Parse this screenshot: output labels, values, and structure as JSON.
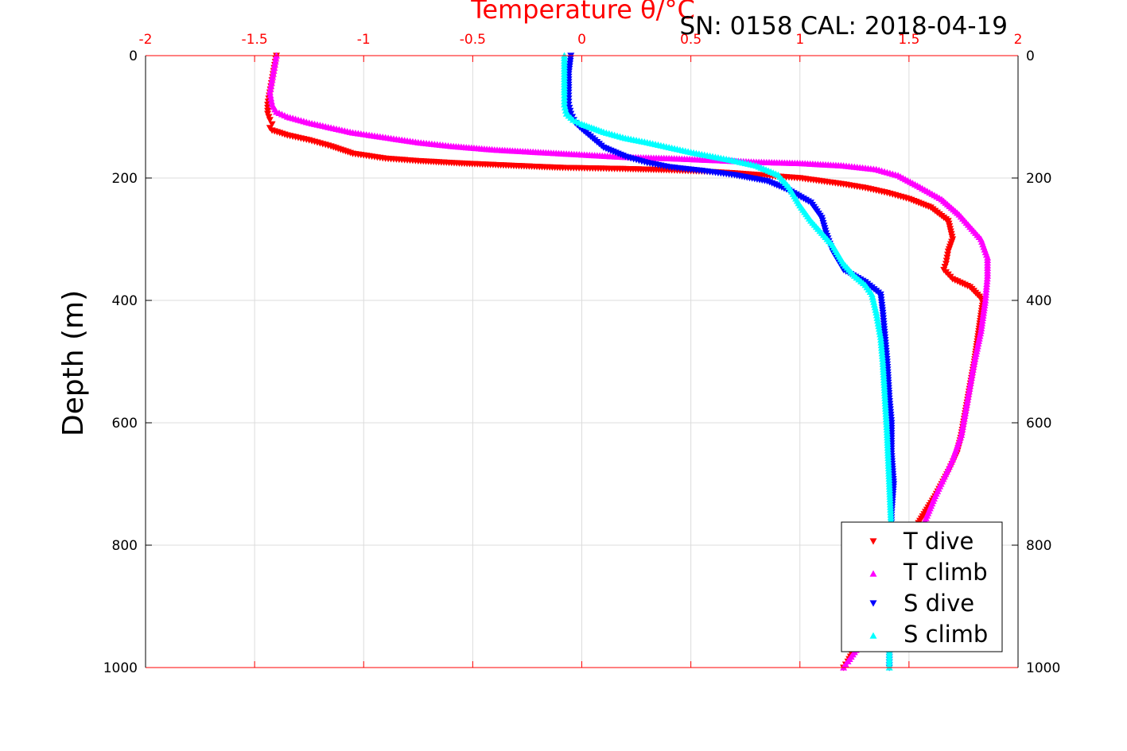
{
  "chart_data": {
    "type": "scatter",
    "title": "Temperature θ/°C",
    "annotation": "SN: 0158  CAL: 2018-04-19",
    "xlabel": "Temperature θ/°C",
    "ylabel": "Depth (m)",
    "xlim": [
      -2,
      2
    ],
    "ylim": [
      0,
      1000
    ],
    "y_reversed": true,
    "x_axis_position": "top",
    "x_ticks": [
      "-2",
      "-1.5",
      "-1",
      "-0.5",
      "0",
      "0.5",
      "1",
      "1.5",
      "2"
    ],
    "y_ticks": [
      "0",
      "200",
      "400",
      "600",
      "800",
      "1000"
    ],
    "grid": true,
    "legend_position": "bottom-right",
    "colors": {
      "axis": "#ff0000",
      "text": "#000000",
      "grid": "#dcdcdc"
    },
    "series": [
      {
        "name": "T dive",
        "color": "#ff0000",
        "marker": "triangle-down",
        "x": [
          -1.4,
          -1.41,
          -1.42,
          -1.43,
          -1.44,
          -1.44,
          -1.43,
          -1.42,
          -1.43,
          -1.42,
          -1.35,
          -1.25,
          -1.15,
          -1.05,
          -0.9,
          -0.75,
          -0.55,
          -0.3,
          -0.1,
          0.05,
          0.2,
          0.4,
          0.55,
          0.7,
          0.85,
          1.0,
          1.1,
          1.2,
          1.3,
          1.4,
          1.5,
          1.6,
          1.68,
          1.7,
          1.68,
          1.67,
          1.66,
          1.7,
          1.78,
          1.84,
          1.82,
          1.8,
          1.78,
          1.76,
          1.74,
          1.72,
          1.68,
          1.62,
          1.55,
          1.48,
          1.42,
          1.36,
          1.3,
          1.25,
          1.22,
          1.2
        ],
        "y": [
          0,
          20,
          40,
          60,
          80,
          95,
          105,
          112,
          118,
          122,
          130,
          138,
          148,
          160,
          168,
          172,
          176,
          180,
          183,
          184,
          185,
          187,
          189,
          192,
          196,
          200,
          205,
          210,
          216,
          224,
          234,
          248,
          270,
          300,
          320,
          340,
          350,
          365,
          378,
          400,
          450,
          500,
          540,
          580,
          620,
          650,
          680,
          720,
          760,
          800,
          850,
          900,
          940,
          970,
          990,
          1000
        ]
      },
      {
        "name": "T climb",
        "color": "#ff00ff",
        "marker": "triangle-up",
        "x": [
          -1.4,
          -1.41,
          -1.42,
          -1.43,
          -1.42,
          -1.4,
          -1.35,
          -1.25,
          -1.15,
          -1.05,
          -0.9,
          -0.75,
          -0.6,
          -0.4,
          -0.2,
          0.0,
          0.2,
          0.4,
          0.6,
          0.8,
          1.0,
          1.2,
          1.35,
          1.45,
          1.55,
          1.65,
          1.73,
          1.78,
          1.83,
          1.86,
          1.86,
          1.85,
          1.83,
          1.8,
          1.78,
          1.76,
          1.74,
          1.7,
          1.62,
          1.55,
          1.48,
          1.42,
          1.36,
          1.3,
          1.25,
          1.22,
          1.2
        ],
        "y": [
          0,
          20,
          40,
          60,
          80,
          92,
          100,
          110,
          118,
          126,
          134,
          142,
          148,
          154,
          158,
          162,
          166,
          168,
          171,
          174,
          176,
          180,
          186,
          196,
          215,
          235,
          260,
          280,
          300,
          330,
          360,
          400,
          450,
          500,
          540,
          580,
          620,
          660,
          720,
          780,
          840,
          880,
          920,
          950,
          975,
          990,
          1000
        ]
      },
      {
        "name": "S dive",
        "color": "#0000ff",
        "marker": "triangle-down",
        "x": [
          -0.05,
          -0.06,
          -0.06,
          -0.06,
          -0.05,
          -0.03,
          0.0,
          0.05,
          0.1,
          0.2,
          0.3,
          0.4,
          0.55,
          0.7,
          0.85,
          0.95,
          1.05,
          1.1,
          1.12,
          1.15,
          1.2,
          1.3,
          1.37,
          1.38,
          1.39,
          1.4,
          1.41,
          1.42,
          1.42,
          1.43,
          1.42,
          1.42,
          1.41,
          1.41,
          1.41
        ],
        "y": [
          0,
          30,
          60,
          80,
          95,
          110,
          120,
          135,
          150,
          165,
          175,
          182,
          188,
          195,
          205,
          220,
          240,
          265,
          290,
          320,
          350,
          370,
          390,
          420,
          460,
          500,
          560,
          600,
          650,
          700,
          750,
          800,
          900,
          960,
          1000
        ]
      },
      {
        "name": "S climb",
        "color": "#00ffff",
        "marker": "triangle-up",
        "x": [
          -0.08,
          -0.08,
          -0.08,
          -0.08,
          -0.07,
          -0.04,
          0.0,
          0.1,
          0.2,
          0.3,
          0.4,
          0.5,
          0.6,
          0.7,
          0.8,
          0.9,
          0.95,
          1.0,
          1.05,
          1.1,
          1.15,
          1.2,
          1.25,
          1.3,
          1.33,
          1.35,
          1.37,
          1.38,
          1.39,
          1.4,
          1.41,
          1.42,
          1.42,
          1.41,
          1.41
        ],
        "y": [
          0,
          30,
          60,
          80,
          95,
          105,
          112,
          125,
          135,
          142,
          150,
          158,
          165,
          172,
          180,
          195,
          215,
          245,
          270,
          290,
          310,
          340,
          360,
          375,
          390,
          420,
          460,
          500,
          560,
          620,
          700,
          780,
          860,
          950,
          1000
        ]
      }
    ]
  }
}
